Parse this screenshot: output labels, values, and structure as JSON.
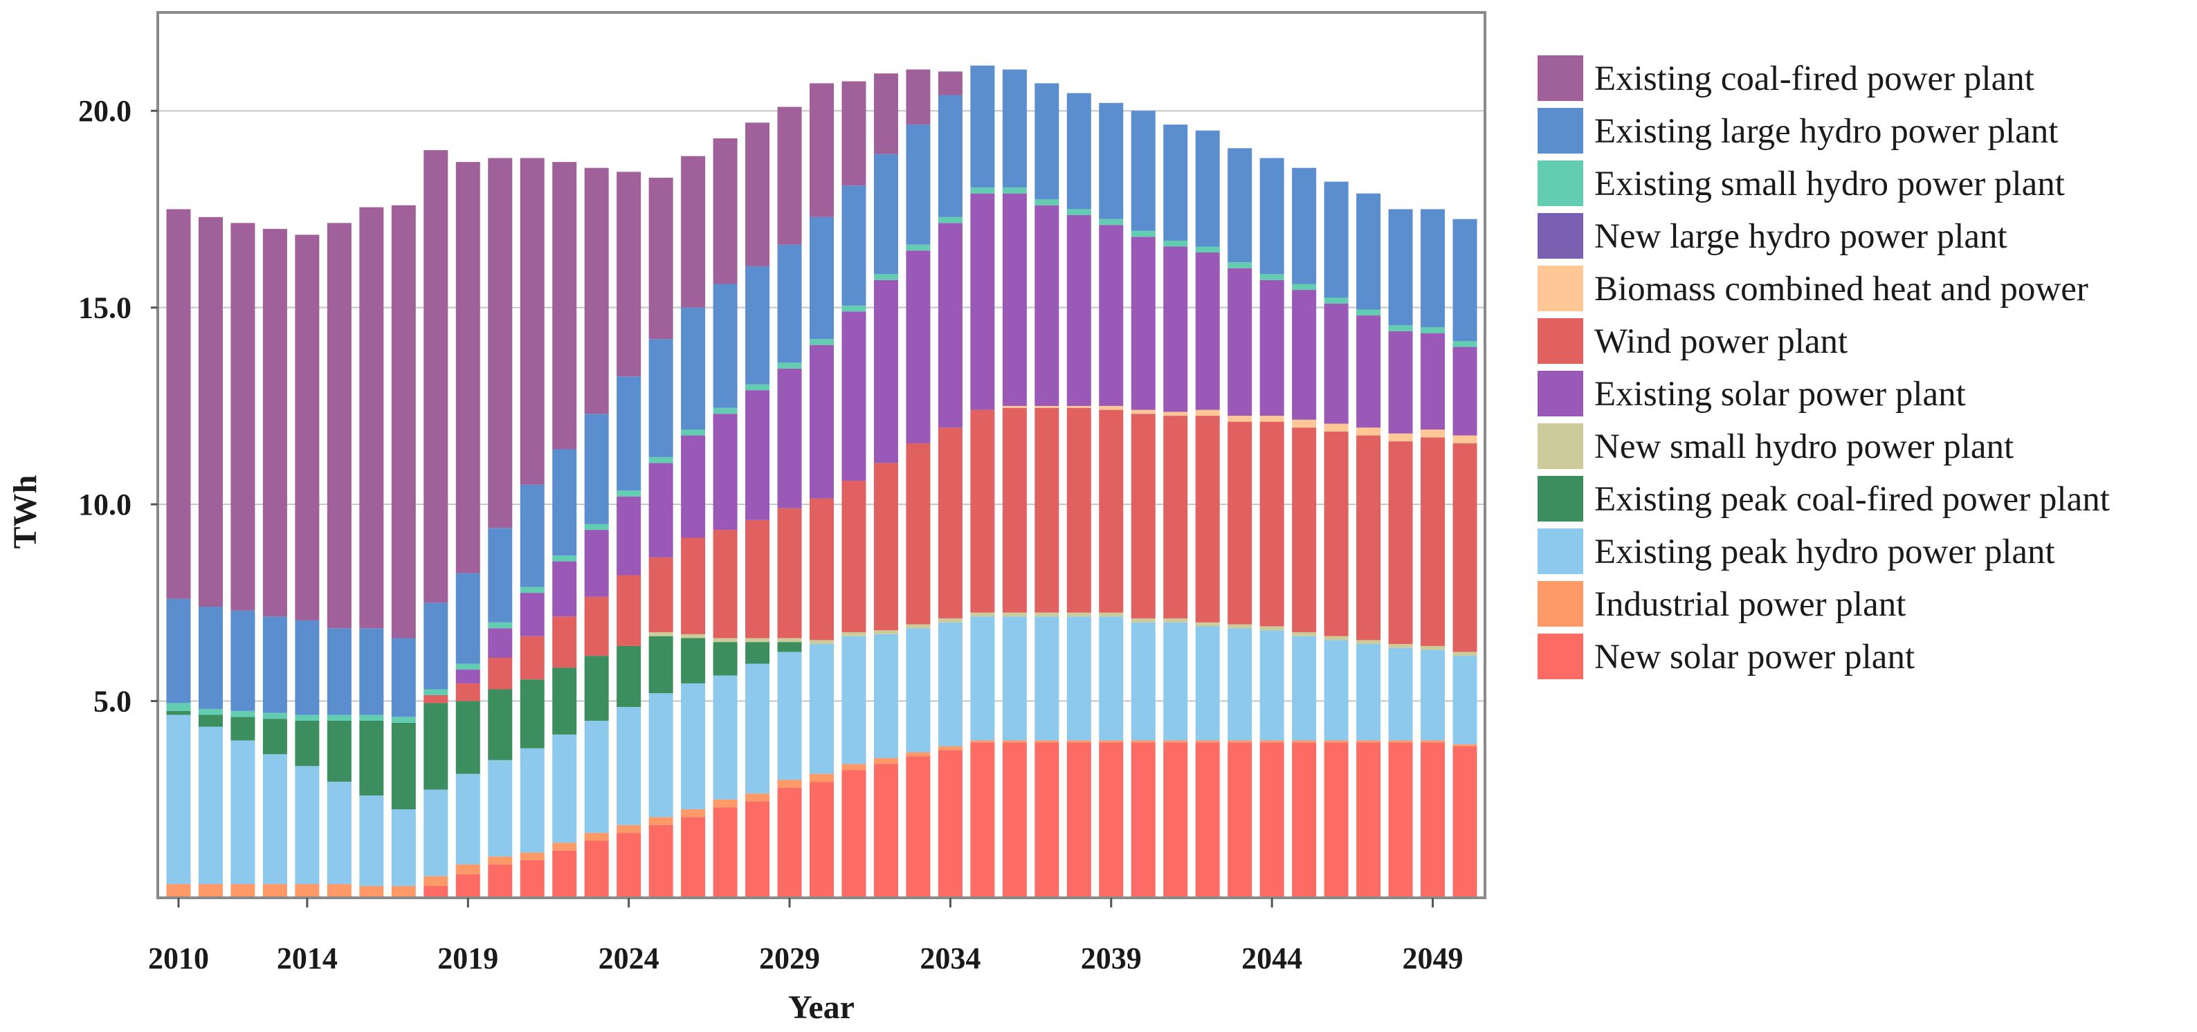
{
  "chart_data": {
    "type": "bar",
    "stacked": true,
    "title": "",
    "xlabel": "Year",
    "ylabel": "TWh",
    "ylim": [
      0,
      22.5
    ],
    "yticks": [
      5.0,
      10.0,
      15.0,
      20.0
    ],
    "ytick_labels": [
      "5.0",
      "10.0",
      "15.0",
      "20.0"
    ],
    "xtick_labels": [
      "2010",
      "2014",
      "2019",
      "2024",
      "2029",
      "2034",
      "2039",
      "2044",
      "2049"
    ],
    "grid": "horizontal",
    "legend_position": "right",
    "categories": [
      "2010",
      "2011",
      "2012",
      "2013",
      "2014",
      "2015",
      "2016",
      "2017",
      "2018",
      "2019",
      "2020",
      "2021",
      "2022",
      "2023",
      "2024",
      "2025",
      "2026",
      "2027",
      "2028",
      "2029",
      "2030",
      "2031",
      "2032",
      "2033",
      "2034",
      "2035",
      "2036",
      "2037",
      "2038",
      "2039",
      "2040",
      "2041",
      "2042",
      "2043",
      "2044",
      "2045",
      "2046",
      "2047",
      "2048",
      "2049",
      "2050"
    ],
    "series": [
      {
        "name": "New solar power plant",
        "color": "#fc6c65",
        "values": [
          0,
          0,
          0,
          0,
          0,
          0,
          0,
          0,
          0.3,
          0.6,
          0.85,
          0.95,
          1.2,
          1.45,
          1.65,
          1.85,
          2.05,
          2.3,
          2.45,
          2.8,
          2.95,
          3.25,
          3.4,
          3.6,
          3.75,
          3.95,
          3.95,
          3.95,
          3.95,
          3.95,
          3.95,
          3.95,
          3.95,
          3.95,
          3.95,
          3.95,
          3.95,
          3.95,
          3.95,
          3.95,
          3.85
        ]
      },
      {
        "name": "Industrial power plant",
        "color": "#fd9a68",
        "values": [
          0.35,
          0.35,
          0.35,
          0.35,
          0.35,
          0.35,
          0.3,
          0.3,
          0.25,
          0.25,
          0.2,
          0.2,
          0.2,
          0.2,
          0.2,
          0.2,
          0.2,
          0.2,
          0.2,
          0.2,
          0.2,
          0.15,
          0.15,
          0.1,
          0.1,
          0.05,
          0.05,
          0.05,
          0.05,
          0.05,
          0.05,
          0.05,
          0.05,
          0.05,
          0.05,
          0.05,
          0.05,
          0.05,
          0.05,
          0.05,
          0.05
        ]
      },
      {
        "name": "Existing peak hydro power plant",
        "color": "#8cc9ec",
        "values": [
          4.3,
          4.0,
          3.65,
          3.3,
          3.0,
          2.6,
          2.3,
          1.95,
          2.2,
          2.3,
          2.45,
          2.65,
          2.75,
          2.85,
          3.0,
          3.15,
          3.2,
          3.15,
          3.3,
          3.25,
          3.3,
          3.25,
          3.15,
          3.15,
          3.15,
          3.15,
          3.15,
          3.15,
          3.15,
          3.15,
          3.0,
          3.0,
          2.9,
          2.85,
          2.8,
          2.65,
          2.55,
          2.45,
          2.35,
          2.3,
          2.25
        ]
      },
      {
        "name": "Existing peak coal-fired power plant",
        "color": "#3c8e5e",
        "values": [
          0.1,
          0.3,
          0.6,
          0.9,
          1.15,
          1.55,
          1.9,
          2.2,
          2.2,
          1.85,
          1.8,
          1.75,
          1.7,
          1.65,
          1.55,
          1.45,
          1.15,
          0.85,
          0.55,
          0.25,
          0,
          0,
          0,
          0,
          0,
          0,
          0,
          0,
          0,
          0,
          0,
          0,
          0,
          0,
          0,
          0,
          0,
          0,
          0,
          0,
          0
        ]
      },
      {
        "name": "New small hydro power plant",
        "color": "#cccc9b",
        "values": [
          0,
          0,
          0,
          0,
          0,
          0,
          0,
          0,
          0,
          0,
          0,
          0,
          0,
          0,
          0,
          0.1,
          0.1,
          0.1,
          0.1,
          0.1,
          0.1,
          0.1,
          0.1,
          0.1,
          0.1,
          0.1,
          0.1,
          0.1,
          0.1,
          0.1,
          0.1,
          0.1,
          0.1,
          0.1,
          0.1,
          0.1,
          0.1,
          0.1,
          0.1,
          0.1,
          0.1
        ]
      },
      {
        "name": "Existing solar power plant",
        "color": "#9a58b7",
        "values": [
          0,
          0,
          0,
          0,
          0,
          0,
          0,
          0,
          0,
          0,
          0,
          0,
          0,
          0,
          0,
          0,
          0,
          0,
          0,
          0,
          0,
          0,
          0,
          0,
          0,
          0,
          0,
          0,
          0,
          0,
          0,
          0,
          0,
          0,
          0,
          0,
          0,
          0,
          0,
          0,
          0
        ]
      },
      {
        "name": "Wind power plant",
        "color": "#e0615f",
        "values": [
          0,
          0,
          0,
          0,
          0,
          0,
          0,
          0,
          0.2,
          0.45,
          0.8,
          1.1,
          1.3,
          1.5,
          1.8,
          1.9,
          2.45,
          2.75,
          3.0,
          3.3,
          3.6,
          3.85,
          4.25,
          4.6,
          4.85,
          5.15,
          5.2,
          5.2,
          5.2,
          5.15,
          5.2,
          5.15,
          5.25,
          5.15,
          5.2,
          5.2,
          5.2,
          5.2,
          5.15,
          5.3,
          5.3
        ]
      },
      {
        "name": "Biomass combined heat and power",
        "color": "#fec795",
        "values": [
          0,
          0,
          0,
          0,
          0,
          0,
          0,
          0,
          0,
          0,
          0,
          0,
          0,
          0,
          0,
          0,
          0,
          0,
          0,
          0,
          0,
          0,
          0,
          0,
          0,
          0,
          0.05,
          0.05,
          0.05,
          0.1,
          0.1,
          0.1,
          0.15,
          0.15,
          0.15,
          0.2,
          0.2,
          0.2,
          0.2,
          0.2,
          0.2
        ]
      },
      {
        "name": "New large hydro power plant",
        "color": "#7b5fb0",
        "values": [
          0,
          0,
          0,
          0,
          0,
          0,
          0,
          0,
          0,
          0,
          0,
          0,
          0,
          0,
          0,
          0,
          0,
          0,
          0,
          0,
          0,
          0,
          0,
          0,
          0,
          0,
          0,
          0,
          0,
          0,
          0,
          0,
          0,
          0,
          0,
          0,
          0,
          0,
          0,
          0,
          0
        ]
      },
      {
        "name": "Existing solar power plant (upper)",
        "legend": false,
        "color": "#9a58b7",
        "values": [
          0,
          0,
          0,
          0,
          0,
          0,
          0,
          0,
          0,
          0.35,
          0.75,
          1.1,
          1.4,
          1.7,
          2.0,
          2.4,
          2.6,
          2.95,
          3.3,
          3.55,
          3.9,
          4.3,
          4.65,
          4.9,
          5.2,
          5.5,
          5.4,
          5.1,
          4.85,
          4.6,
          4.4,
          4.2,
          4.0,
          3.75,
          3.45,
          3.3,
          3.05,
          2.85,
          2.6,
          2.45,
          2.25
        ]
      },
      {
        "name": "Existing small hydro power plant",
        "color": "#62cdb1",
        "values": [
          0.2,
          0.15,
          0.15,
          0.15,
          0.15,
          0.15,
          0.15,
          0.15,
          0.15,
          0.15,
          0.15,
          0.15,
          0.15,
          0.15,
          0.15,
          0.15,
          0.15,
          0.15,
          0.15,
          0.15,
          0.15,
          0.15,
          0.15,
          0.15,
          0.15,
          0.15,
          0.15,
          0.15,
          0.15,
          0.15,
          0.15,
          0.15,
          0.15,
          0.15,
          0.15,
          0.15,
          0.15,
          0.15,
          0.15,
          0.15,
          0.15
        ]
      },
      {
        "name": "Existing large hydro power plant",
        "color": "#5b8ece",
        "values": [
          2.65,
          2.6,
          2.55,
          2.45,
          2.4,
          2.2,
          2.2,
          2.0,
          2.2,
          2.3,
          2.4,
          2.6,
          2.7,
          2.8,
          2.9,
          3.0,
          3.1,
          3.15,
          3.0,
          3.0,
          3.1,
          3.05,
          3.05,
          3.05,
          3.1,
          3.1,
          3.0,
          2.95,
          2.95,
          2.95,
          3.05,
          2.95,
          2.95,
          2.9,
          2.95,
          2.95,
          2.95,
          2.95,
          2.95,
          3.0,
          3.1
        ]
      },
      {
        "name": "Existing coal-fired power plant",
        "color": "#a0609a",
        "values": [
          9.9,
          9.9,
          9.85,
          9.85,
          9.8,
          10.3,
          10.7,
          11.0,
          11.5,
          10.45,
          9.4,
          8.3,
          7.3,
          6.25,
          5.2,
          4.1,
          3.85,
          3.7,
          3.65,
          3.5,
          3.4,
          2.65,
          2.05,
          1.4,
          0.6,
          0,
          0,
          0,
          0,
          0,
          0,
          0,
          0,
          0,
          0,
          0,
          0,
          0,
          0,
          0,
          0
        ]
      }
    ],
    "legend_order": [
      "Existing coal-fired power plant",
      "Existing large hydro power plant",
      "Existing small hydro power plant",
      "New large hydro power plant",
      "Biomass combined heat and power",
      "Wind power plant",
      "Existing solar power plant",
      "New small hydro power plant",
      "Existing peak coal-fired power plant",
      "Existing peak hydro power plant",
      "Industrial power plant",
      "New solar power plant"
    ]
  },
  "legend_colors": {
    "Existing coal-fired power plant": "#a0609a",
    "Existing large hydro power plant": "#5b8ece",
    "Existing small hydro power plant": "#62cdb1",
    "New large hydro power plant": "#7b5fb0",
    "Biomass combined heat and power": "#fec795",
    "Wind power plant": "#e0615f",
    "Existing solar power plant": "#9a58b7",
    "New small hydro power plant": "#cccc9b",
    "Existing peak coal-fired power plant": "#3c8e5e",
    "Existing peak hydro power plant": "#8cc9ec",
    "Industrial power plant": "#fd9a68",
    "New solar power plant": "#fc6c65"
  }
}
